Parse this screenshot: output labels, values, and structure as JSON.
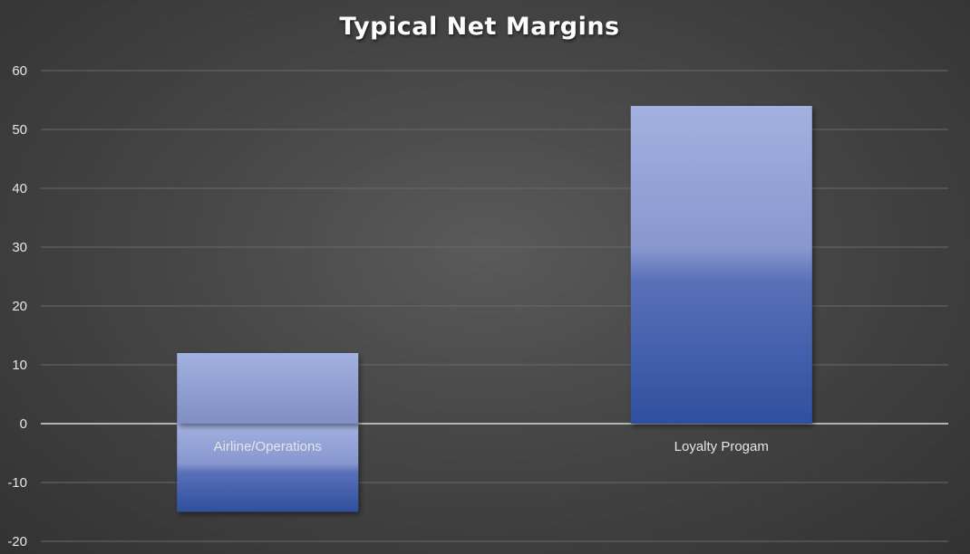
{
  "chart_data": {
    "type": "bar",
    "title": "Typical Net Margins",
    "xlabel": "",
    "ylabel": "",
    "categories": [
      "Airline/Operations",
      "Loyalty Progam"
    ],
    "values": [
      -15,
      54
    ],
    "bar_labels": [
      12,
      null
    ],
    "ylim": [
      -20,
      60
    ],
    "yticks": [
      60,
      50,
      40,
      30,
      20,
      10,
      0,
      -10,
      -20
    ],
    "grid": true,
    "legend": "none",
    "colors": {
      "bar_top": "#a3b1e0",
      "bar_bottom": "#2f4f9f",
      "gridline": "#6a6a6a",
      "zero_line": "#d9d9d9",
      "text": "#e6e6e6",
      "background": "#444444"
    }
  }
}
